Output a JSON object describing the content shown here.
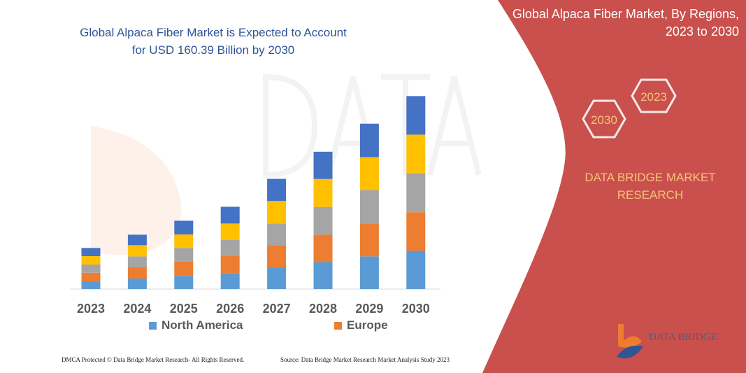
{
  "header": {
    "title": "Global Alpaca Fiber Market is Expected to Account for USD 160.39 Billion by 2030",
    "panel_title_line1": "Global Alpaca Fiber Market, By Regions,",
    "panel_title_line2": "2023 to 2030"
  },
  "panel": {
    "hex_a": "2023",
    "hex_b": "2030",
    "brand_line1": "DATA BRIDGE MARKET",
    "brand_line2": "RESEARCH",
    "logo_text": "DATA BRIDGE",
    "color": "#c9504c"
  },
  "footer": {
    "dmca": "DMCA Protected © Data Bridge Market Research- All Rights Reserved.",
    "source": "Source: Data Bridge Market Research  Market Analysis Study 2023"
  },
  "chart_data": {
    "type": "bar",
    "stacked": true,
    "title": "Global Alpaca Fiber Market is Expected to Account for USD 160.39 Billion by 2030",
    "categories": [
      "2023",
      "2024",
      "2025",
      "2026",
      "2027",
      "2028",
      "2029",
      "2030"
    ],
    "grid": false,
    "legend_position": "bottom",
    "series": [
      {
        "name": "North America",
        "color": "#5b9bd5",
        "values": [
          6.4,
          8.7,
          10.9,
          13.2,
          18.0,
          22.4,
          27.1,
          31.7
        ]
      },
      {
        "name": "Europe",
        "color": "#ed7d31",
        "values": [
          7.1,
          9.3,
          11.8,
          14.1,
          18.4,
          22.8,
          27.3,
          32.1
        ]
      },
      {
        "color": "#a5a5a5",
        "values": [
          6.8,
          9.1,
          11.4,
          13.4,
          18.0,
          23.0,
          27.8,
          32.3
        ]
      },
      {
        "color": "#ffc000",
        "values": [
          7.0,
          9.3,
          11.2,
          13.7,
          18.7,
          23.2,
          27.3,
          32.1
        ]
      },
      {
        "color": "#4472c4",
        "values": [
          6.8,
          8.7,
          11.4,
          13.9,
          18.4,
          22.6,
          27.8,
          32.0
        ]
      }
    ]
  }
}
